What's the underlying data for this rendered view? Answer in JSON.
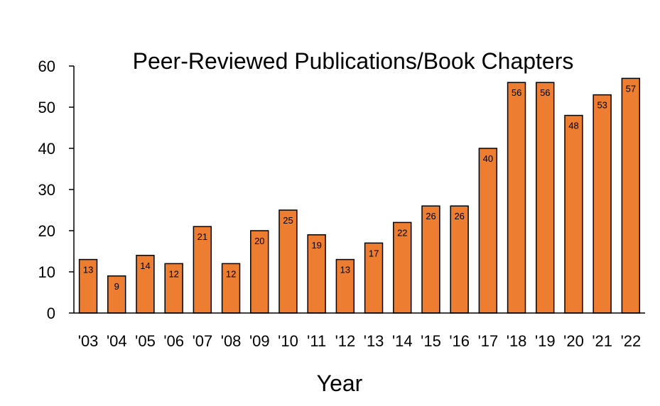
{
  "chart_data": {
    "type": "bar",
    "title": "Peer-Reviewed Publications/Book Chapters",
    "xlabel": "Year",
    "ylabel": "",
    "categories": [
      "'03",
      "'04",
      "'05",
      "'06",
      "'07",
      "'08",
      "'09",
      "'10",
      "'11",
      "'12",
      "'13",
      "'14",
      "'15",
      "'16",
      "'17",
      "'18",
      "'19",
      "'20",
      "'21",
      "'22"
    ],
    "values": [
      13,
      9,
      14,
      12,
      21,
      12,
      20,
      25,
      19,
      13,
      17,
      22,
      26,
      26,
      40,
      56,
      56,
      48,
      53,
      57
    ],
    "ylim": [
      0,
      60
    ],
    "yticks": [
      0,
      10,
      20,
      30,
      40,
      50,
      60
    ],
    "grid": false,
    "legend": "none",
    "data_labels": true,
    "colors": {
      "bar_fill": "#ED7D31",
      "bar_stroke": "#000000",
      "axis": "#000000"
    }
  }
}
